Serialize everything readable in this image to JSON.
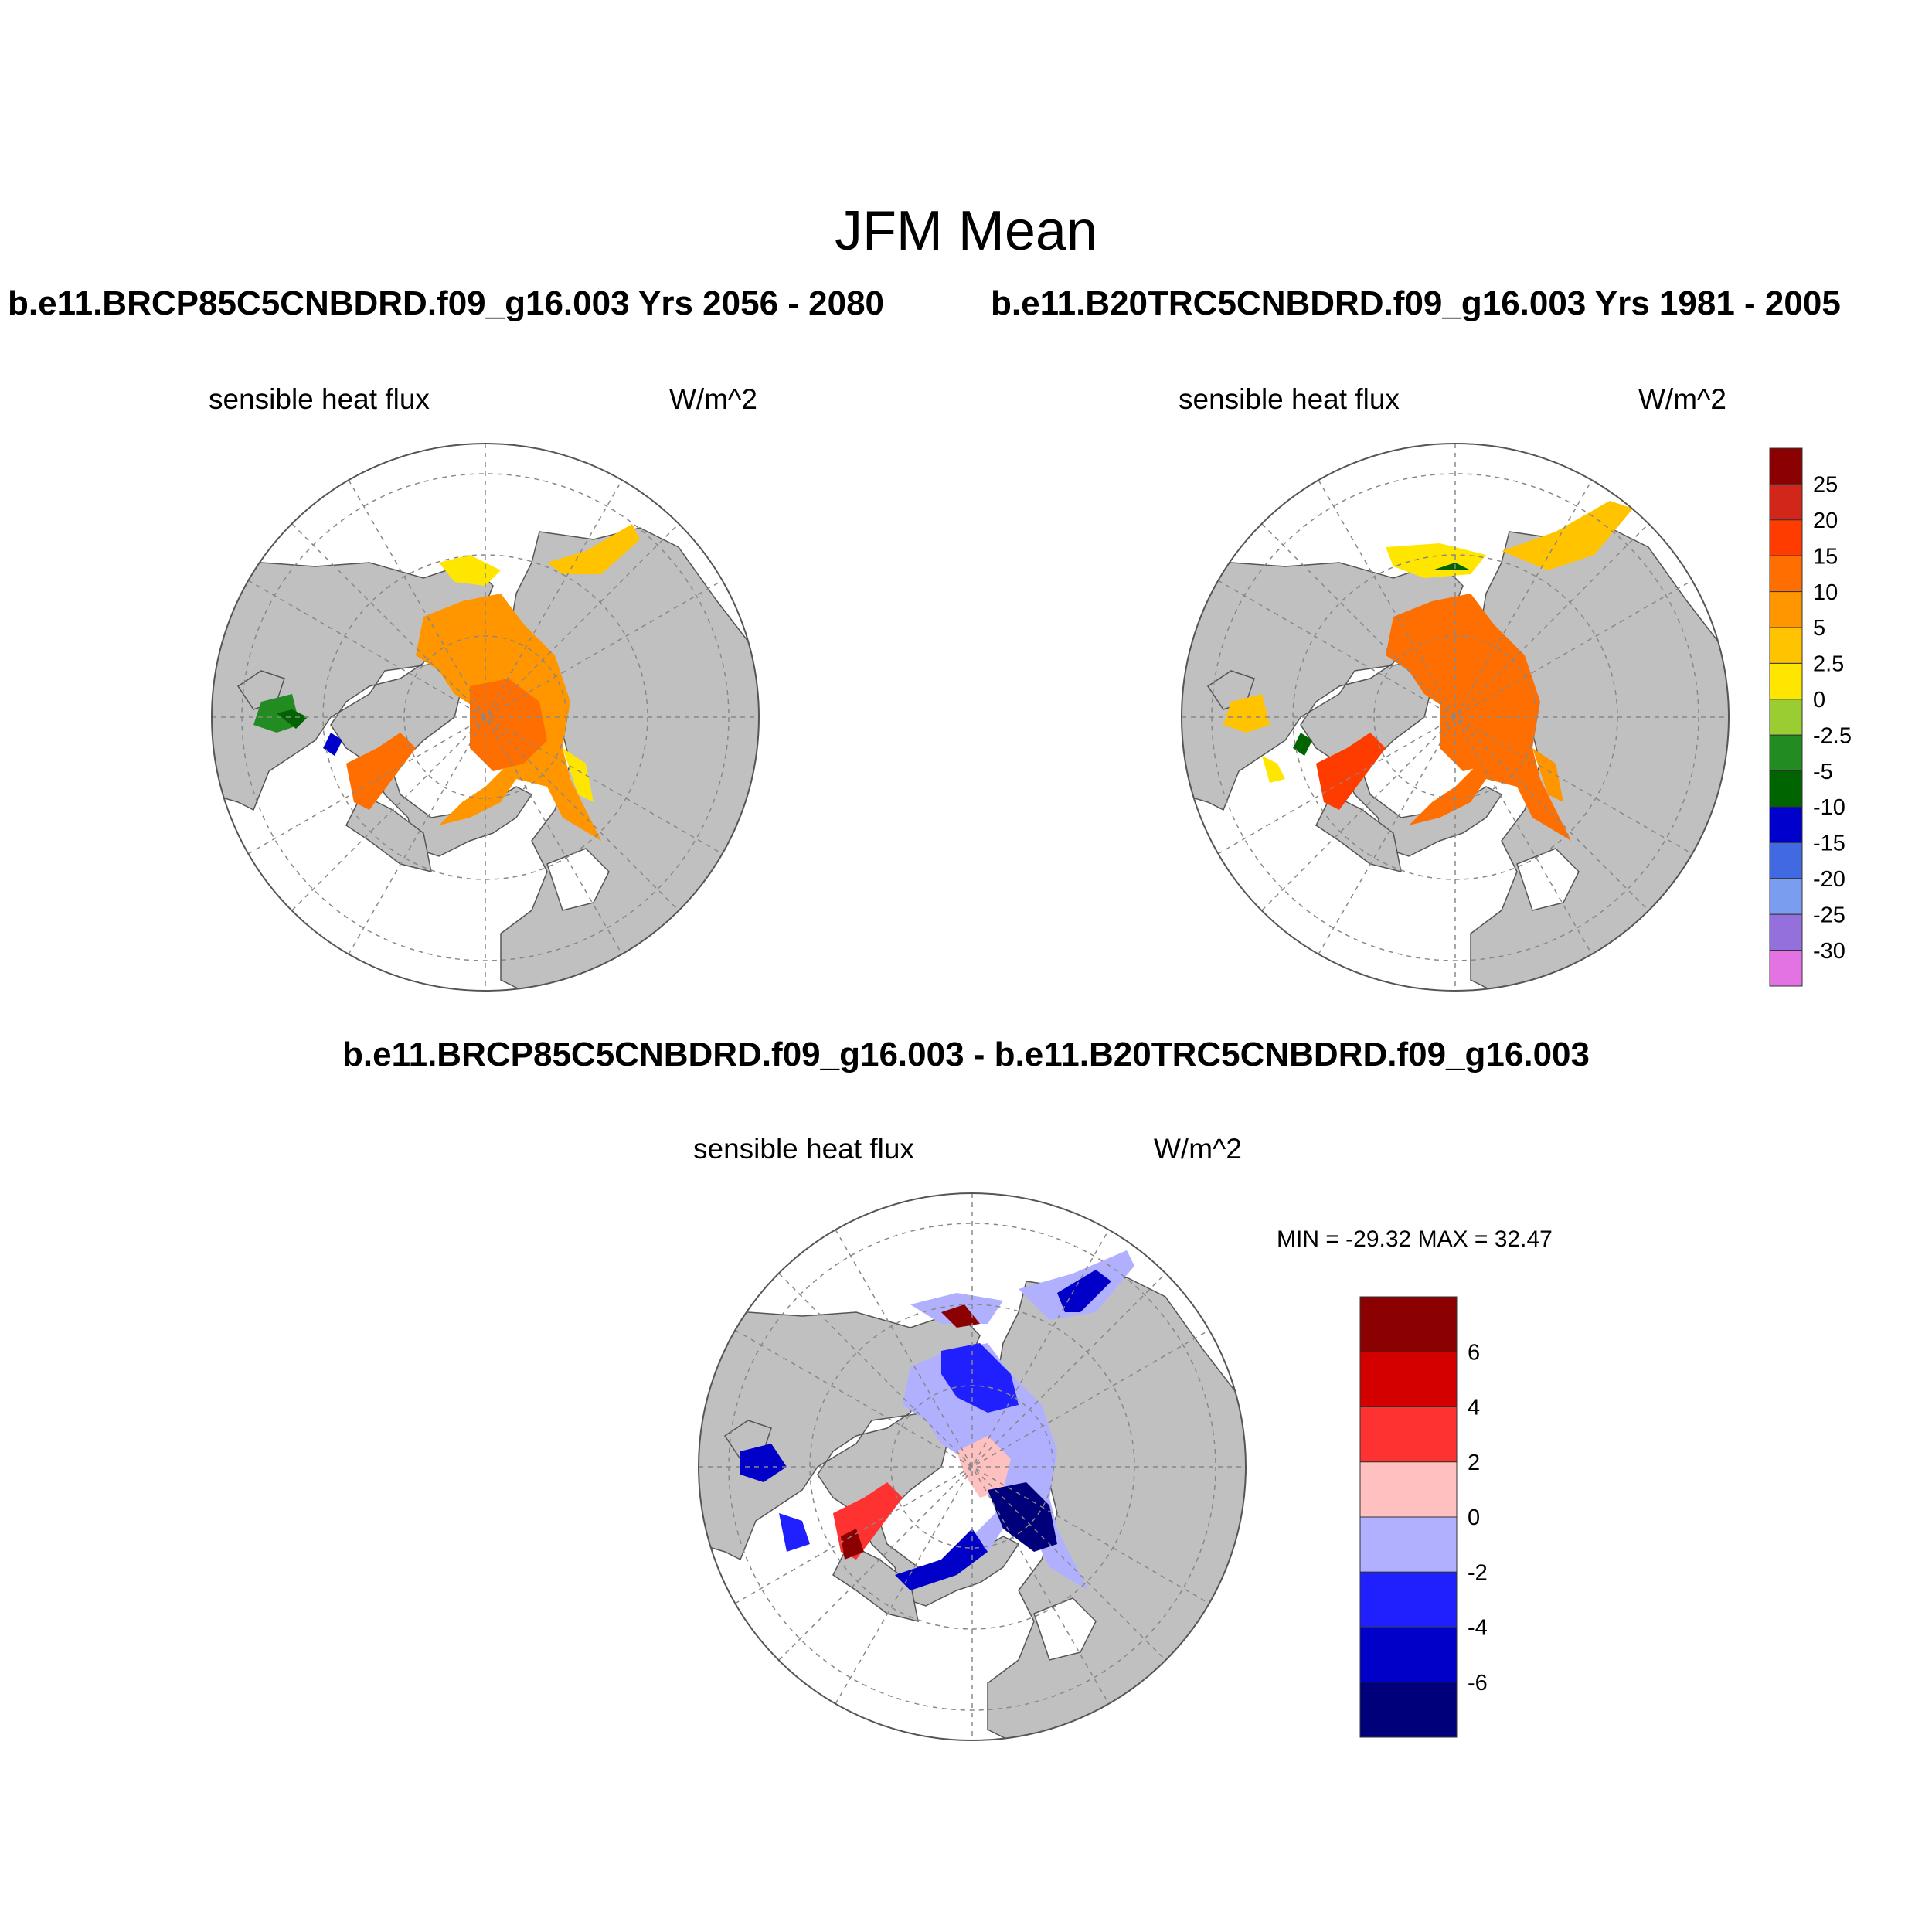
{
  "figure": {
    "title": "JFM Mean",
    "panel1_title": "b.e11.BRCP85C5CNBDRD.f09_g16.003  Yrs 2056 - 2080",
    "panel2_title": "b.e11.B20TRC5CNBDRD.f09_g16.003  Yrs 1981 - 2005",
    "diff_title": "b.e11.BRCP85C5CNBDRD.f09_g16.003 - b.e11.B20TRC5CNBDRD.f09_g16.003"
  },
  "panels": {
    "future": {
      "variable": "sensible heat flux",
      "units": "W/m^2"
    },
    "historical": {
      "variable": "sensible heat flux",
      "units": "W/m^2"
    },
    "difference": {
      "variable": "sensible heat flux",
      "units": "W/m^2",
      "minmax": "MIN = -29.32 MAX =  32.47"
    }
  },
  "colorbar_main": {
    "labels": [
      "25",
      "20",
      "15",
      "10",
      "5",
      "2.5",
      "0",
      "-2.5",
      "-5",
      "-10",
      "-15",
      "-20",
      "-25",
      "-30"
    ],
    "colors": [
      "#8b0000",
      "#d2261a",
      "#ff3c00",
      "#ff6e00",
      "#ff9600",
      "#ffc300",
      "#ffe600",
      "#9acd32",
      "#228b22",
      "#006400",
      "#0000cd",
      "#4169e1",
      "#7b9df0",
      "#9370db",
      "#e373e3"
    ]
  },
  "colorbar_diff": {
    "labels": [
      "6",
      "4",
      "2",
      "0",
      "-2",
      "-4",
      "-6"
    ],
    "colors": [
      "#8b0000",
      "#d40000",
      "#ff3232",
      "#ffc0c0",
      "#b0b0ff",
      "#2020ff",
      "#0000c8",
      "#00007a"
    ]
  },
  "colors": {
    "land": "#c0c0c0",
    "ocean": "#ffffff",
    "grid": "#888888"
  }
}
